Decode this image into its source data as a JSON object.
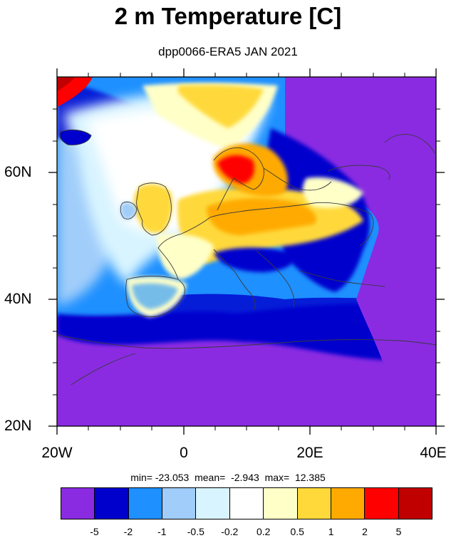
{
  "title": "2 m Temperature [C]",
  "subtitle": "dpp0066-ERA5 JAN 2021",
  "stats": {
    "min_label": "min=",
    "min": "-23.053",
    "mean_label": "mean=",
    "mean": "-2.943",
    "max_label": "max=",
    "max": "12.385"
  },
  "map": {
    "lat_labels": [
      "60N",
      "40N",
      "20N"
    ],
    "lon_labels": [
      "20W",
      "0",
      "20E",
      "40E"
    ],
    "colors": {
      "c_lt_m5": "#8a2be2",
      "c_m5_m2": "#0000cd",
      "c_m2_m1": "#1e90ff",
      "c_m1_m05": "#a0cdfa",
      "c_m05_m02": "#d8f4ff",
      "c_m02_02": "#ffffff",
      "c_02_05": "#ffffc8",
      "c_05_1": "#ffd93a",
      "c_1_2": "#ffaa00",
      "c_2_5": "#ff0000",
      "c_gt_5": "#c00000"
    }
  },
  "colorbar": {
    "colors": [
      "#8a2be2",
      "#0000cd",
      "#1e90ff",
      "#a0cdfa",
      "#d8f4ff",
      "#ffffff",
      "#ffffc8",
      "#ffd93a",
      "#ffaa00",
      "#ff0000",
      "#c00000"
    ],
    "labels": [
      "-5",
      "-2",
      "-1",
      "-0.5",
      "-0.2",
      "0.2",
      "0.5",
      "1",
      "2",
      "5"
    ]
  }
}
